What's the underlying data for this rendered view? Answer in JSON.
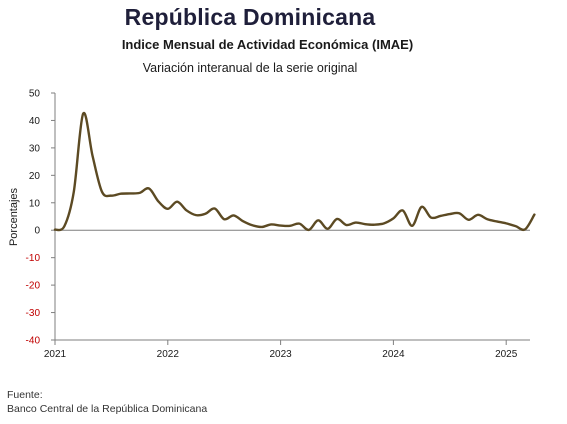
{
  "header": {
    "title": "República Dominicana",
    "subtitle": "Indice Mensual de Actividad Económica (IMAE)",
    "note": "Variación interanual de la serie original"
  },
  "source": {
    "label": "Fuente:",
    "text": "Banco Central de la República Dominicana"
  },
  "chart_data": {
    "type": "line",
    "title": "República Dominicana",
    "ylabel": "Porcentajes",
    "xlabel": "",
    "ylim": [
      -40,
      50
    ],
    "yticks": [
      50,
      40,
      30,
      20,
      10,
      0,
      -10,
      -20,
      -30,
      -40
    ],
    "ytick_labels": [
      "50",
      "40",
      "30",
      "20",
      "10",
      "0",
      "-10",
      "-20",
      "-30",
      "-40"
    ],
    "xticks": [
      "2021",
      "2022",
      "2023",
      "2024",
      "2025"
    ],
    "grid": false,
    "line_color": "#5c4a23",
    "x": [
      "2021-01",
      "2021-02",
      "2021-03",
      "2021-04",
      "2021-05",
      "2021-06",
      "2021-07",
      "2021-08",
      "2021-09",
      "2021-10",
      "2021-11",
      "2021-12",
      "2022-01",
      "2022-02",
      "2022-03",
      "2022-04",
      "2022-05",
      "2022-06",
      "2022-07",
      "2022-08",
      "2022-09",
      "2022-10",
      "2022-11",
      "2022-12",
      "2023-01",
      "2023-02",
      "2023-03",
      "2023-04",
      "2023-05",
      "2023-06",
      "2023-07",
      "2023-08",
      "2023-09",
      "2023-10",
      "2023-11",
      "2023-12",
      "2024-01",
      "2024-02",
      "2024-03",
      "2024-04",
      "2024-05",
      "2024-06",
      "2024-07",
      "2024-08",
      "2024-09",
      "2024-10",
      "2024-11",
      "2024-12",
      "2025-01",
      "2025-02",
      "2025-03",
      "2025-04"
    ],
    "series": [
      {
        "values": [
          0.2,
          1.5,
          14.0,
          42.5,
          27.0,
          14.0,
          12.6,
          13.3,
          13.4,
          13.6,
          15.2,
          10.5,
          7.8,
          10.4,
          7.2,
          5.5,
          6.0,
          7.9,
          4.0,
          5.4,
          3.3,
          1.8,
          1.2,
          2.1,
          1.7,
          1.6,
          2.4,
          0.1,
          3.6,
          0.5,
          4.1,
          1.9,
          2.8,
          2.2,
          2.0,
          2.5,
          4.3,
          7.2,
          1.6,
          8.5,
          4.6,
          5.2,
          5.9,
          6.2,
          3.8,
          5.6,
          4.0,
          3.2,
          2.5,
          1.5,
          0.3,
          5.7
        ]
      }
    ]
  }
}
